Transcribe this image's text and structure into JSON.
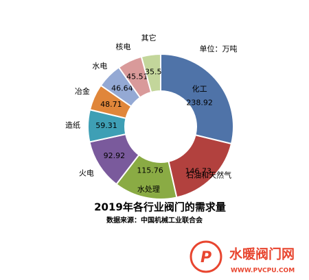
{
  "chart_data": {
    "type": "donut",
    "title": "2019年各行业阀门的需求量",
    "subtitle": "数据来源：中国机械工业联合会",
    "unit": "单位：万吨",
    "categories": [
      "化工",
      "石油和天然气",
      "水处理",
      "火电",
      "造纸",
      "冶金",
      "水电",
      "核电",
      "其它"
    ],
    "values": [
      238.92,
      146.73,
      115.76,
      92.92,
      59.31,
      48.71,
      46.64,
      45.51,
      35.5
    ],
    "colors": [
      "#4f73a8",
      "#b2413e",
      "#8aab44",
      "#7a5a9c",
      "#3e9fb5",
      "#e0863a",
      "#94a9d4",
      "#d99a9a",
      "#c3d69b"
    ]
  },
  "watermark": {
    "name": "水暖阀门网",
    "url": "WWW.PVCPU.COM"
  }
}
